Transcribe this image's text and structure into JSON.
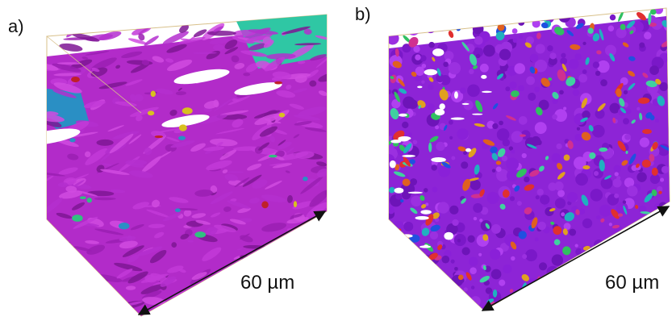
{
  "panels": [
    {
      "label": "a)",
      "scale_label": "60 µm"
    },
    {
      "label": "b)",
      "scale_label": "60 µm"
    }
  ]
}
